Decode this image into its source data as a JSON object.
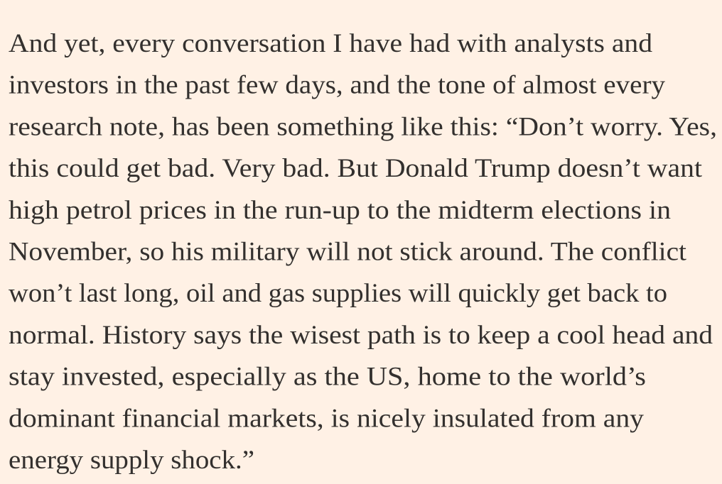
{
  "page": {
    "background_color": "#FFF1E5",
    "text_color": "#33302E"
  },
  "article": {
    "paragraph_text": "And yet, every conversation I have had with analysts and investors in the past few days, and the tone of almost every research note, has been something like this: “Don’t worry. Yes, this could get bad. Very bad. But Donald Trump doesn’t want high petrol prices in the run-up to the midterm elections in November, so his military will not stick around. The conflict won’t last long, oil and gas supplies will quickly get back to normal. History says the wisest path is to keep a cool head and stay invested, especially as the US, home to the world’s dominant financial markets, is nicely insulated from any energy supply shock.”",
    "paragraph_lines": [
      "And yet, every conversation I have had with analysts and",
      "investors in the past few days, and the tone of almost every",
      "research note, has been something like this: “Don’t worry. Yes,",
      "this could get bad. Very bad. But Donald Trump doesn’t want",
      "high petrol prices in the run-up to the midterm elections in",
      "November, so his military will not stick around. The conflict",
      "won’t last long, oil and gas supplies will quickly get back to",
      "normal. History says the wisest path is to keep a cool head and",
      "stay invested, especially as the US, home to the world’s",
      "dominant financial markets, is nicely insulated from any",
      "energy supply shock.”"
    ]
  }
}
